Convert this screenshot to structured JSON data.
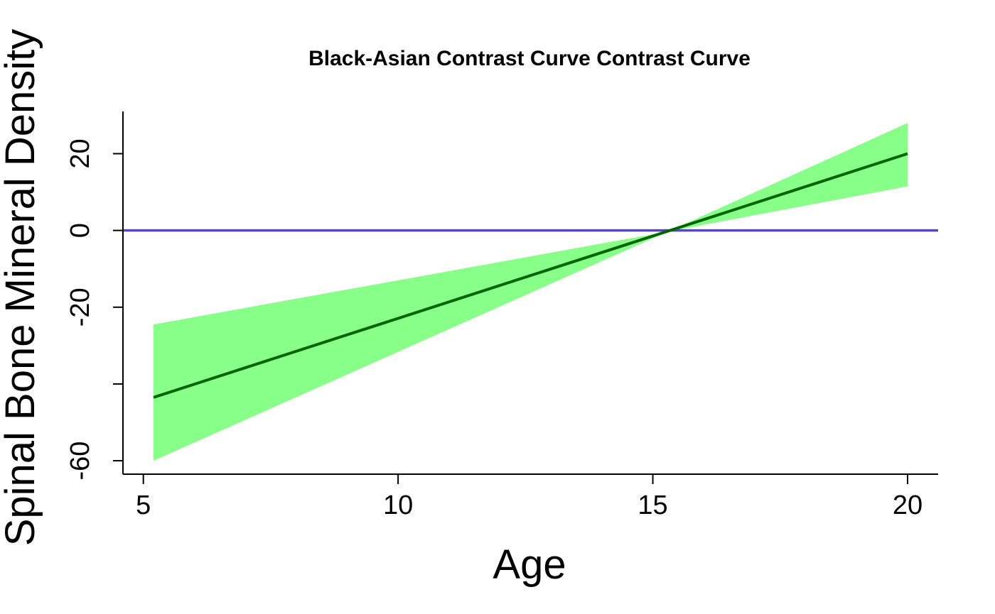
{
  "chart_data": {
    "type": "line",
    "title": "Black-Asian Contrast Curve Contrast Curve",
    "xlabel": "Age",
    "ylabel": "Spinal Bone Mineral Density",
    "xlim": [
      4.6,
      20.6
    ],
    "ylim": [
      -63.5,
      31
    ],
    "x_ticks": [
      5,
      10,
      15,
      20
    ],
    "y_ticks": [
      20,
      0,
      -20,
      -40,
      -60
    ],
    "y_tick_labels": [
      "20",
      "0",
      "-20",
      "",
      "-60"
    ],
    "grid": false,
    "series": [
      {
        "type": "line",
        "x": [
          5.2,
          20
        ],
        "y": [
          -43.5,
          20
        ],
        "color": "#006400"
      }
    ],
    "confidence_band": {
      "x": [
        5.2,
        15.3,
        20
      ],
      "upper": [
        -24.5,
        -0.3,
        28
      ],
      "lower": [
        -60,
        -0.3,
        11.5
      ],
      "color": "#88ff88"
    },
    "reference_line": {
      "y": 0,
      "color": "#5544cc"
    }
  }
}
